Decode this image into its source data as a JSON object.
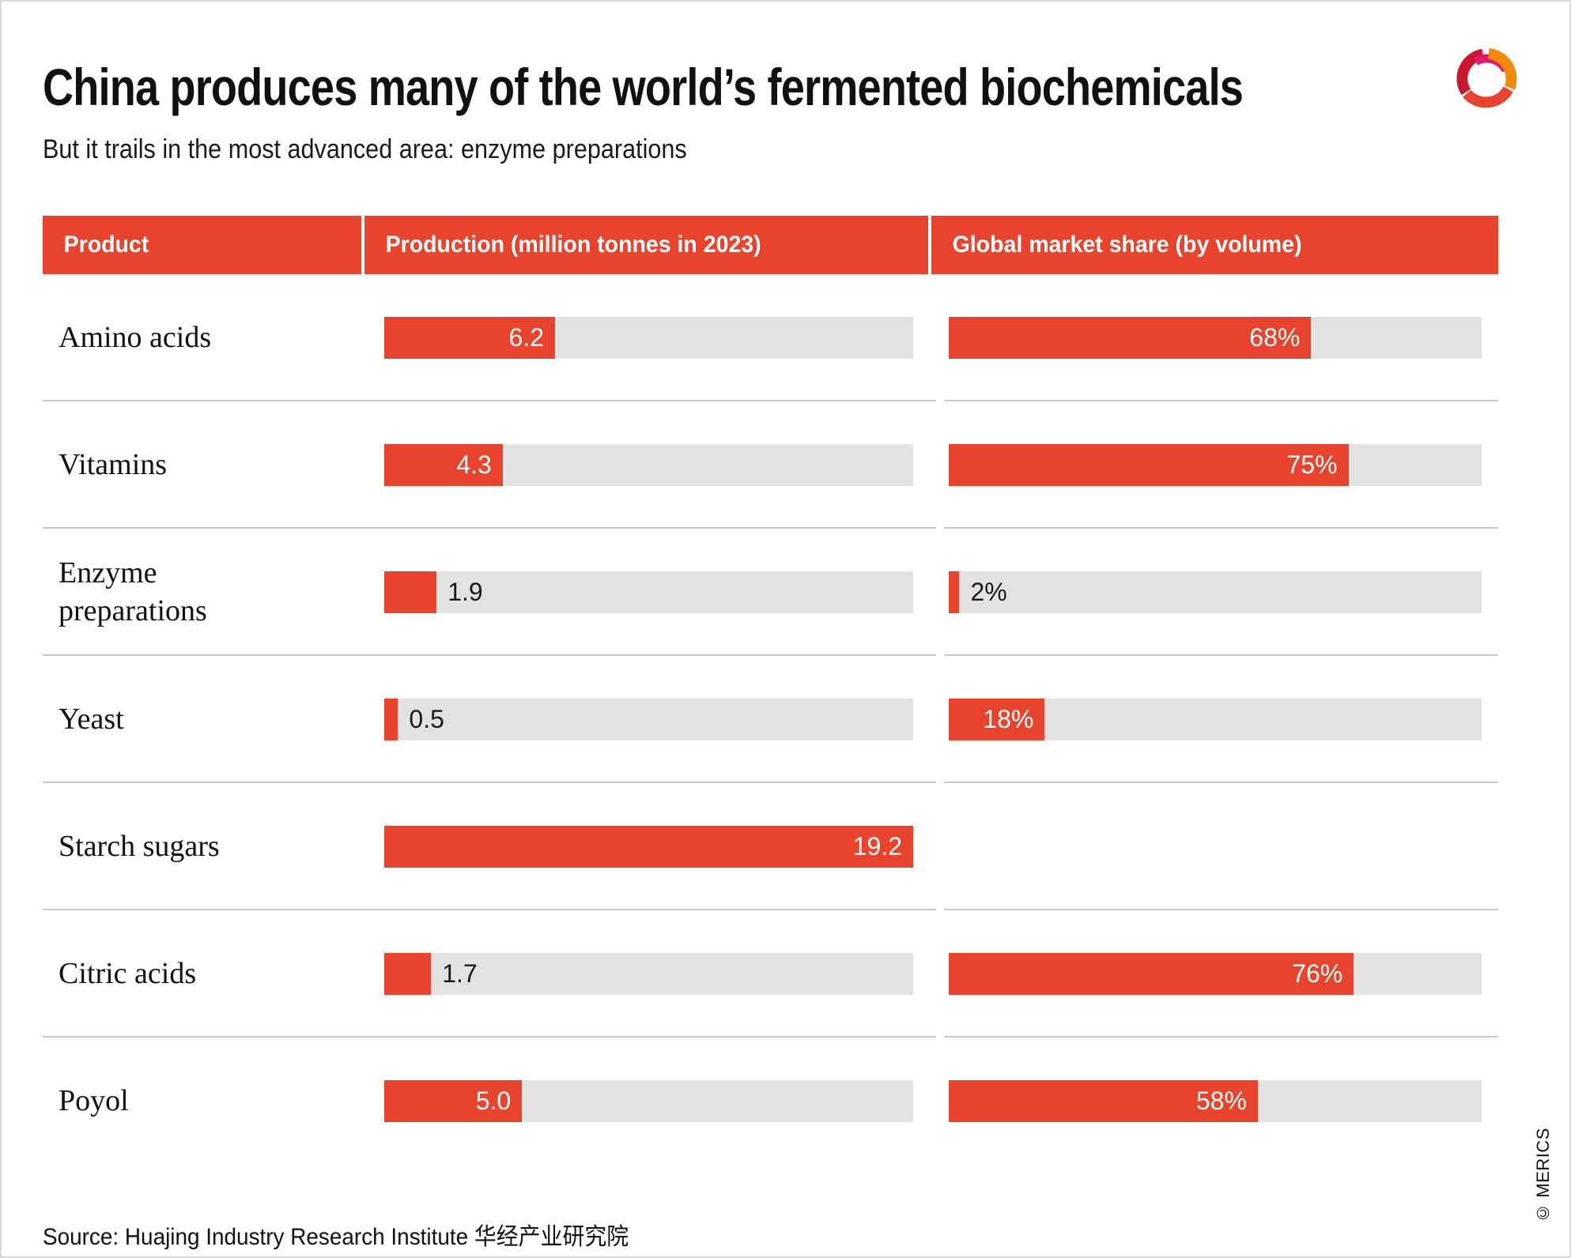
{
  "page": {
    "title": "China produces many of the world’s fermented biochemicals",
    "subtitle": "But it trails in the most advanced area: enzyme preparations",
    "source": "Source: Huajing Industry Research Institute 华经产业研究院",
    "copyright": "© MERICS"
  },
  "colors": {
    "accent_red": "#E8432C",
    "track_gray": "#E2E2E2",
    "divider_gray": "#C9C9C9",
    "logo_crimson": "#C9182E",
    "logo_magenta": "#E5186E",
    "logo_orange": "#F08A0A",
    "text_dark": "#1A1A1A"
  },
  "table": {
    "columns": [
      "Product",
      "Production (million tonnes in 2023)",
      "Global market share (by volume)"
    ],
    "production_axis_max": 19.2,
    "share_axis_max": 100,
    "rows": [
      {
        "product": "Amino acids",
        "production_label": "6.2",
        "production_value": 6.2,
        "share_label": "68%",
        "share_value": 68
      },
      {
        "product": "Vitamins",
        "production_label": "4.3",
        "production_value": 4.3,
        "share_label": "75%",
        "share_value": 75
      },
      {
        "product": "Enzyme preparations",
        "production_label": "1.9",
        "production_value": 1.9,
        "share_label": "2%",
        "share_value": 2
      },
      {
        "product": "Yeast",
        "production_label": "0.5",
        "production_value": 0.5,
        "share_label": "18%",
        "share_value": 18
      },
      {
        "product": "Starch sugars",
        "production_label": "19.2",
        "production_value": 19.2,
        "share_label": null,
        "share_value": null
      },
      {
        "product": "Citric acids",
        "production_label": "1.7",
        "production_value": 1.7,
        "share_label": "76%",
        "share_value": 76
      },
      {
        "product": "Poyol",
        "production_label": "5.0",
        "production_value": 5.0,
        "share_label": "58%",
        "share_value": 58
      }
    ]
  },
  "chart_data": {
    "type": "bar",
    "orientation": "horizontal",
    "title": "China produces many of the world’s fermented biochemicals",
    "subtitle": "But it trails in the most advanced area: enzyme preparations",
    "categories": [
      "Amino acids",
      "Vitamins",
      "Enzyme preparations",
      "Yeast",
      "Starch sugars",
      "Citric acids",
      "Poyol"
    ],
    "series": [
      {
        "name": "Production (million tonnes in 2023)",
        "values": [
          6.2,
          4.3,
          1.9,
          0.5,
          19.2,
          1.7,
          5.0
        ],
        "axis_range": [
          0,
          19.2
        ]
      },
      {
        "name": "Global market share (by volume)",
        "values": [
          68,
          75,
          2,
          18,
          null,
          76,
          58
        ],
        "unit": "%",
        "axis_range": [
          0,
          100
        ]
      }
    ],
    "grid": false,
    "legend_position": "column-headers",
    "source": "Source: Huajing Industry Research Institute 华经产业研究院"
  }
}
